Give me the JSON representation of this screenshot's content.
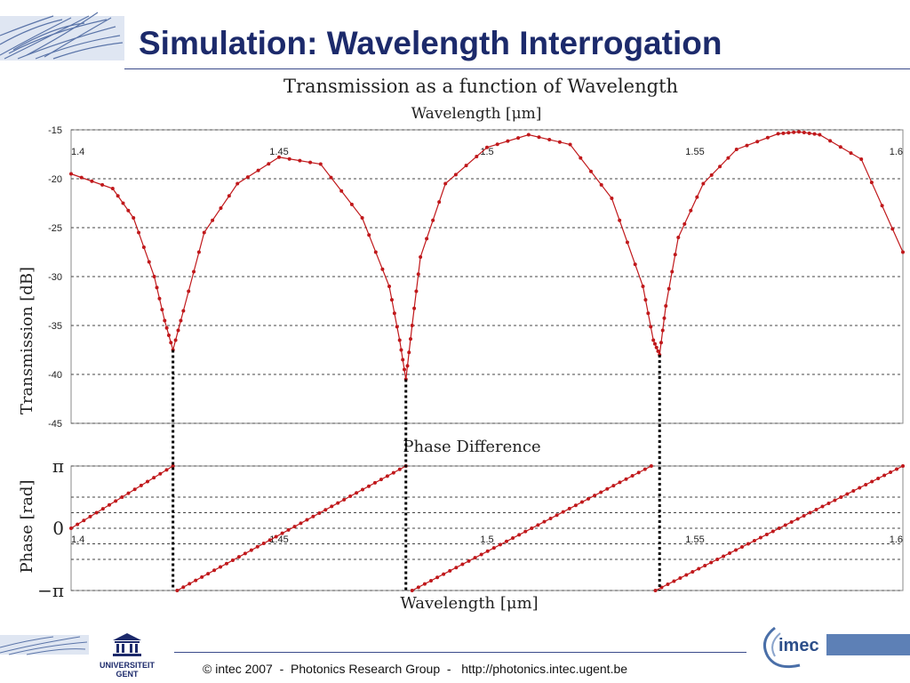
{
  "slide": {
    "title": "Simulation: Wavelength Interrogation",
    "footer": "© intec 2007  -  Photonics Research Group  -   http://photonics.intec.ugent.be",
    "logo_left_text": "UNIVERSITEIT\nGENT",
    "logo_right_text": "imec"
  },
  "colors": {
    "title": "#1c2a6b",
    "series": "#c0181b",
    "grid": "#444444",
    "marker_lines": "#000000"
  },
  "chart_data": [
    {
      "type": "line",
      "title": "Transmission as a function of Wavelength",
      "x_axis_top_label": "Wavelength [μm]",
      "ylabel": "Transmission [dB]",
      "xlim": [
        1.4,
        1.6
      ],
      "ylim": [
        -45,
        -15
      ],
      "x_ticks": [
        "1.4",
        "1.45",
        "1.5",
        "1.55",
        "1.6"
      ],
      "y_ticks": [
        "-15",
        "-20",
        "-25",
        "-30",
        "-35",
        "-40",
        "-45"
      ],
      "grid": "dashed horizontal",
      "series": [
        {
          "x": [
            1.4,
            1.41,
            1.415,
            1.42,
            1.4225,
            1.4245,
            1.427,
            1.432,
            1.44,
            1.45,
            1.46,
            1.47,
            1.4765,
            1.479,
            1.4805,
            1.482,
            1.484,
            1.49,
            1.5,
            1.51,
            1.52,
            1.53,
            1.5375,
            1.54,
            1.5415,
            1.543,
            1.546,
            1.552,
            1.56,
            1.57,
            1.575,
            1.58,
            1.59,
            1.6
          ],
          "y": [
            -19.5,
            -21.0,
            -24.0,
            -30.0,
            -34.5,
            -37.5,
            -33.5,
            -25.5,
            -20.5,
            -17.8,
            -18.5,
            -24.0,
            -31.0,
            -36.5,
            -40.5,
            -35.0,
            -28.0,
            -20.5,
            -16.8,
            -15.5,
            -16.5,
            -22.0,
            -31.0,
            -36.5,
            -38.0,
            -33.0,
            -26.0,
            -20.5,
            -17.0,
            -15.4,
            -15.2,
            -15.5,
            -18.0,
            -27.5
          ]
        }
      ],
      "dip_wavelengths": [
        1.4245,
        1.4805,
        1.5415
      ]
    },
    {
      "type": "line",
      "title": "Phase Difference",
      "xlabel": "Wavelength [μm]",
      "ylabel": "Phase [rad]",
      "xlim": [
        1.4,
        1.6
      ],
      "ylim": [
        -3.1416,
        3.1416
      ],
      "x_ticks": [
        "1.4",
        "1.45",
        "1.5",
        "1.55",
        "1.6"
      ],
      "y_ticks": [
        "π",
        "0",
        "−π"
      ],
      "grid": "dashed horizontal",
      "series": [
        {
          "segments": [
            {
              "x": [
                1.4,
                1.4245
              ],
              "y": [
                0,
                3.1416
              ]
            },
            {
              "x": [
                1.4255,
                1.4805
              ],
              "y": [
                -3.1416,
                3.1416
              ]
            },
            {
              "x": [
                1.482,
                1.5395
              ],
              "y": [
                -3.1416,
                3.1416
              ]
            },
            {
              "x": [
                1.5405,
                1.6
              ],
              "y": [
                -3.1416,
                3.1416
              ]
            }
          ]
        }
      ]
    }
  ]
}
